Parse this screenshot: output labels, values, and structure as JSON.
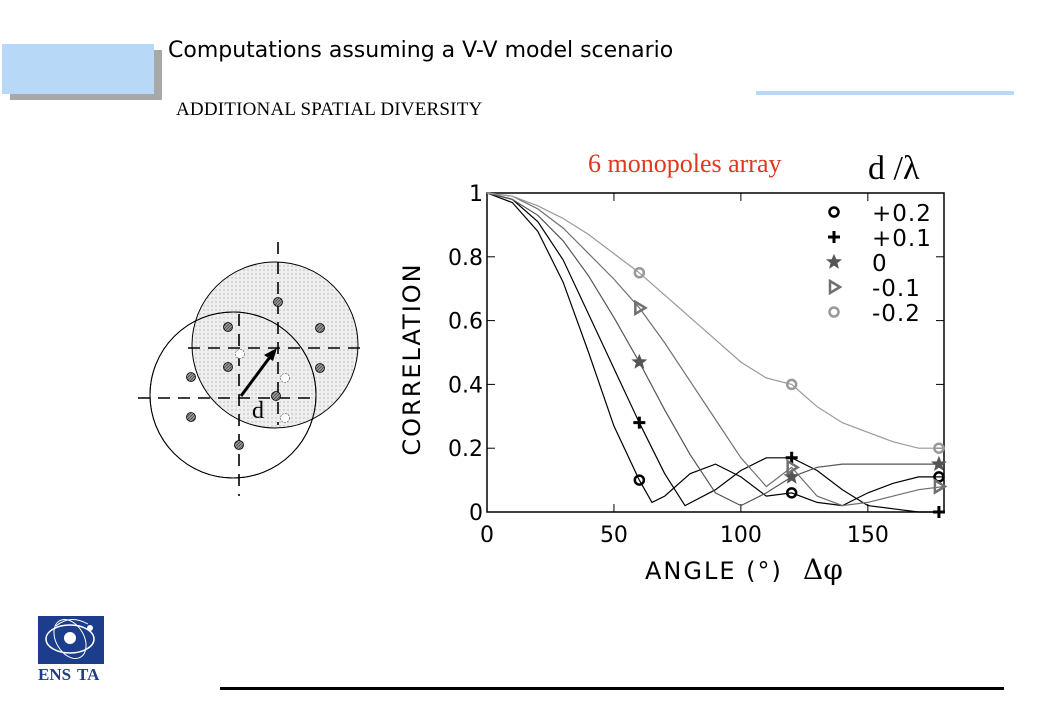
{
  "slide": {
    "title": "Computations assuming a V-V model scenario",
    "subtitle": "ADDITIONAL SPATIAL DIVERSITY",
    "array_label": "6 monopoles array",
    "d_lambda_label": "d /λ",
    "diagram_label": "d",
    "logo_text_a": "ENS",
    "logo_text_b": "TA"
  },
  "colors": {
    "accent_blue": "#b8d8f8",
    "red_title": "#e0381e",
    "logo_blue": "#1c3c8c"
  },
  "chart_data": {
    "type": "line",
    "title": "",
    "xlabel": "ANGLE (°)",
    "xlabel_symbol": "Δφ",
    "ylabel": "CORRELATION",
    "xlim": [
      0,
      180
    ],
    "ylim": [
      0,
      1
    ],
    "xticks": [
      0,
      50,
      100,
      150
    ],
    "yticks": [
      0,
      0.2,
      0.4,
      0.6,
      0.8,
      1
    ],
    "ytick_labels": [
      "0",
      "0.2",
      "0.4",
      "0.6",
      "0.8",
      "1"
    ],
    "legend_position": "top-right",
    "series": [
      {
        "name": "+0.2",
        "color": "#000000",
        "marker": "circle",
        "x": [
          0,
          10,
          20,
          30,
          40,
          50,
          60,
          65,
          70,
          80,
          90,
          100,
          110,
          120,
          130,
          140,
          150,
          160,
          170,
          180
        ],
        "y": [
          1.0,
          0.97,
          0.88,
          0.72,
          0.5,
          0.27,
          0.1,
          0.03,
          0.05,
          0.12,
          0.15,
          0.11,
          0.05,
          0.06,
          0.03,
          0.02,
          0.06,
          0.09,
          0.11,
          0.11
        ],
        "markers_x": [
          60,
          120,
          178
        ],
        "markers_y": [
          0.1,
          0.06,
          0.11
        ]
      },
      {
        "name": "+0.1",
        "color": "#000000",
        "marker": "plus",
        "x": [
          0,
          10,
          20,
          30,
          40,
          50,
          60,
          70,
          78,
          90,
          100,
          110,
          120,
          130,
          140,
          150,
          160,
          170,
          180
        ],
        "y": [
          1.0,
          0.98,
          0.91,
          0.79,
          0.62,
          0.45,
          0.28,
          0.12,
          0.02,
          0.07,
          0.13,
          0.17,
          0.17,
          0.13,
          0.07,
          0.02,
          0.01,
          0.0,
          0.0
        ],
        "markers_x": [
          60,
          120,
          178
        ],
        "markers_y": [
          0.28,
          0.17,
          0.0
        ]
      },
      {
        "name": "0",
        "color": "#555555",
        "marker": "star",
        "x": [
          0,
          10,
          20,
          30,
          40,
          50,
          60,
          70,
          80,
          90,
          100,
          110,
          120,
          130,
          140,
          150,
          160,
          170,
          180
        ],
        "y": [
          1.0,
          0.98,
          0.93,
          0.85,
          0.74,
          0.61,
          0.47,
          0.32,
          0.18,
          0.06,
          0.02,
          0.06,
          0.11,
          0.14,
          0.15,
          0.15,
          0.15,
          0.15,
          0.15
        ],
        "markers_x": [
          60,
          120,
          178
        ],
        "markers_y": [
          0.47,
          0.11,
          0.15
        ]
      },
      {
        "name": "-0.1",
        "color": "#707070",
        "marker": "triangle",
        "x": [
          0,
          10,
          20,
          30,
          40,
          50,
          60,
          70,
          80,
          90,
          100,
          110,
          120,
          130,
          140,
          150,
          160,
          170,
          180
        ],
        "y": [
          1.0,
          0.99,
          0.95,
          0.89,
          0.81,
          0.73,
          0.64,
          0.53,
          0.41,
          0.29,
          0.17,
          0.08,
          0.14,
          0.05,
          0.02,
          0.03,
          0.05,
          0.07,
          0.08
        ],
        "markers_x": [
          60,
          120,
          178
        ],
        "markers_y": [
          0.64,
          0.14,
          0.08
        ]
      },
      {
        "name": "-0.2",
        "color": "#999999",
        "marker": "circle",
        "x": [
          0,
          10,
          20,
          30,
          40,
          50,
          60,
          70,
          80,
          90,
          100,
          110,
          120,
          130,
          140,
          150,
          160,
          170,
          180
        ],
        "y": [
          1.0,
          0.99,
          0.96,
          0.92,
          0.87,
          0.81,
          0.75,
          0.68,
          0.61,
          0.54,
          0.47,
          0.42,
          0.4,
          0.33,
          0.28,
          0.25,
          0.22,
          0.2,
          0.2
        ],
        "markers_x": [
          60,
          120,
          178
        ],
        "markers_y": [
          0.75,
          0.4,
          0.2
        ]
      }
    ]
  }
}
